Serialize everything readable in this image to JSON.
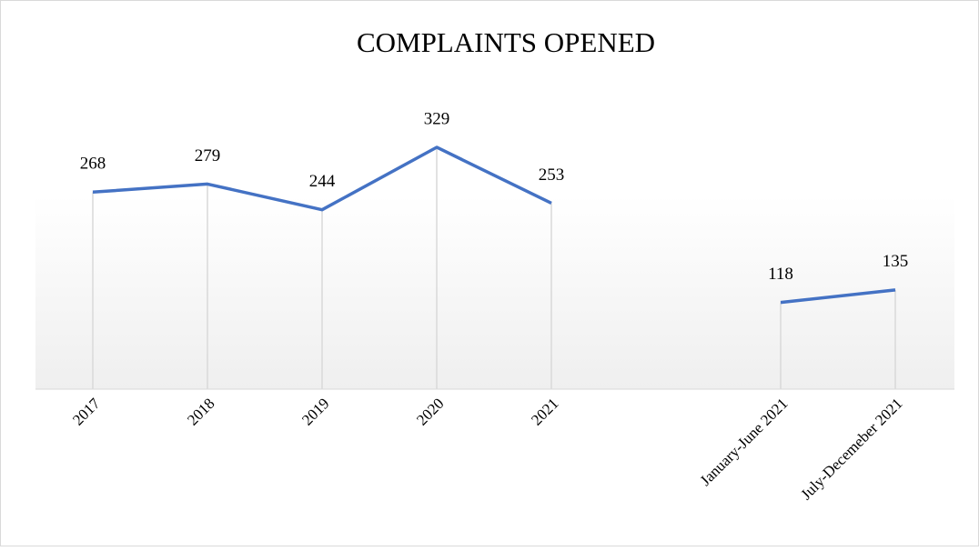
{
  "chart_data": {
    "type": "line",
    "title": "COMPLAINTS OPENED",
    "categories": [
      "2017",
      "2018",
      "2019",
      "2020",
      "2021",
      null,
      "January-June 2021",
      "July-Decemeber 2021"
    ],
    "series": [
      {
        "name": "Complaints opened",
        "color": "#4472c4",
        "values": [
          268,
          279,
          244,
          329,
          253,
          null,
          118,
          135
        ]
      }
    ],
    "ylim": [
      0,
      350
    ],
    "drop_lines": true,
    "data_labels": true,
    "legend": false
  }
}
